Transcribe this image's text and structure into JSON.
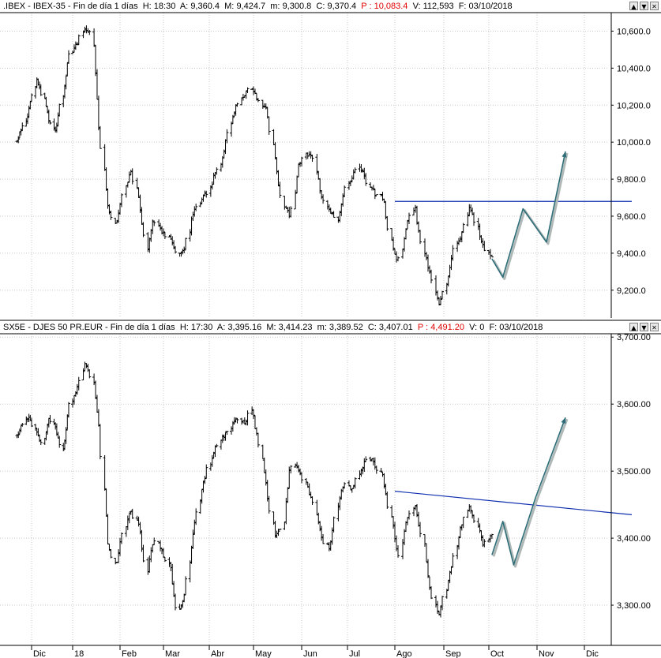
{
  "panes": [
    {
      "id": "ibex",
      "header": {
        "symbol": ".IBEX",
        "name": "IBEX-35",
        "period": "Fin de día 1 días",
        "h_label": "H:",
        "h": "18:30",
        "a_label": "A:",
        "a": "9,360.4",
        "m_label": "M:",
        "m": "9,424.7",
        "min_label": "m:",
        "min": "9,300.8",
        "c_label": "C:",
        "c": "9,370.4",
        "p_label": "P :",
        "p": "10,083.4",
        "v_label": "V:",
        "v": "112,593",
        "f_label": "F:",
        "f": "03/10/2018"
      },
      "buttons": [
        "▲",
        "▼",
        "✕"
      ]
    },
    {
      "id": "sx5e",
      "header": {
        "symbol": "SX5E",
        "name": "DJES 50 PR.EUR",
        "period": "Fin de día 1 días",
        "h_label": "H:",
        "h": "17:30",
        "a_label": "A:",
        "a": "3,395.16",
        "m_label": "M:",
        "m": "3,414.23",
        "min_label": "m:",
        "min": "3,389.52",
        "c_label": "C:",
        "c": "3,407.01",
        "p_label": "P :",
        "p": "4,491.20",
        "v_label": "V:",
        "v": "0",
        "f_label": "F:",
        "f": "03/10/2018"
      },
      "buttons": [
        "▲",
        "▼",
        "✕"
      ]
    }
  ],
  "colors": {
    "price": "#000000",
    "trendline": "#1030b0",
    "projection": "#2e6e78",
    "header_red": "#e00000"
  },
  "chart_data": [
    {
      "type": "bar",
      "title": ".IBEX - IBEX-35",
      "x_tick_labels": [
        "Dic",
        "18",
        "Feb",
        "Mar",
        "Abr",
        "May",
        "Jun",
        "Jul",
        "Ago",
        "Sep",
        "Oct",
        "Nov",
        "Dic"
      ],
      "y_ticks": [
        9200,
        9400,
        9600,
        9800,
        10000,
        10200,
        10400,
        10600
      ],
      "y_tick_labels": [
        "9,200.0",
        "9,400.0",
        "9,600.0",
        "9,800.0",
        "10,000.0",
        "10,200.0",
        "10,400.0",
        "10,600.0"
      ],
      "ylim": [
        9050,
        10700
      ],
      "grid": true,
      "series": [
        {
          "name": "IBEX-35",
          "values": [
            10000,
            10080,
            10180,
            10350,
            10250,
            10120,
            10060,
            10260,
            10480,
            10520,
            10620,
            10580,
            10050,
            9650,
            9560,
            9720,
            9850,
            9700,
            9420,
            9580,
            9520,
            9480,
            9400,
            9420,
            9600,
            9680,
            9720,
            9820,
            9900,
            10080,
            10200,
            10260,
            10300,
            10220,
            10180,
            9900,
            9660,
            9600,
            9880,
            9940,
            9900,
            9700,
            9640,
            9580,
            9740,
            9820,
            9860,
            9780,
            9720,
            9700,
            9450,
            9350,
            9560,
            9640,
            9420,
            9280,
            9120,
            9240,
            9420,
            9500,
            9660,
            9540,
            9420,
            9370
          ]
        },
        {
          "name": "resistance",
          "x": [
            "2018-08-01",
            "2018-12-31"
          ],
          "values": [
            9680,
            9680
          ]
        },
        {
          "name": "projection",
          "x": [
            "2018-10-03",
            "2018-10-10",
            "2018-10-23",
            "2018-11-07",
            "2018-11-19"
          ],
          "values": [
            9370,
            9270,
            9640,
            9460,
            9950
          ]
        }
      ]
    },
    {
      "type": "bar",
      "title": "SX5E - DJES 50 PR.EUR",
      "x_tick_labels": [
        "Dic",
        "18",
        "Feb",
        "Mar",
        "Abr",
        "May",
        "Jun",
        "Jul",
        "Ago",
        "Sep",
        "Oct",
        "Nov",
        "Dic"
      ],
      "y_ticks": [
        3300,
        3400,
        3500,
        3600,
        3700
      ],
      "y_tick_labels": [
        "3,300.00",
        "3,400.00",
        "3,500.00",
        "3,600.00",
        "3,700.00"
      ],
      "ylim": [
        3240,
        3705
      ],
      "grid": true,
      "series": [
        {
          "name": "DJES 50 PR.EUR",
          "values": [
            3550,
            3570,
            3580,
            3560,
            3540,
            3580,
            3560,
            3530,
            3600,
            3620,
            3660,
            3640,
            3560,
            3390,
            3360,
            3410,
            3440,
            3420,
            3350,
            3400,
            3380,
            3360,
            3290,
            3310,
            3400,
            3460,
            3500,
            3530,
            3550,
            3560,
            3580,
            3570,
            3590,
            3540,
            3470,
            3400,
            3420,
            3510,
            3500,
            3480,
            3450,
            3400,
            3380,
            3450,
            3480,
            3470,
            3500,
            3520,
            3510,
            3490,
            3430,
            3370,
            3430,
            3450,
            3400,
            3320,
            3280,
            3330,
            3370,
            3420,
            3450,
            3420,
            3390,
            3407
          ]
        },
        {
          "name": "trendline",
          "x": [
            "2018-08-01",
            "2018-12-31"
          ],
          "values": [
            3470,
            3435
          ]
        },
        {
          "name": "projection",
          "x": [
            "2018-10-03",
            "2018-10-10",
            "2018-10-17",
            "2018-10-31",
            "2018-11-19"
          ],
          "values": [
            3375,
            3425,
            3360,
            3460,
            3580
          ]
        }
      ]
    }
  ]
}
